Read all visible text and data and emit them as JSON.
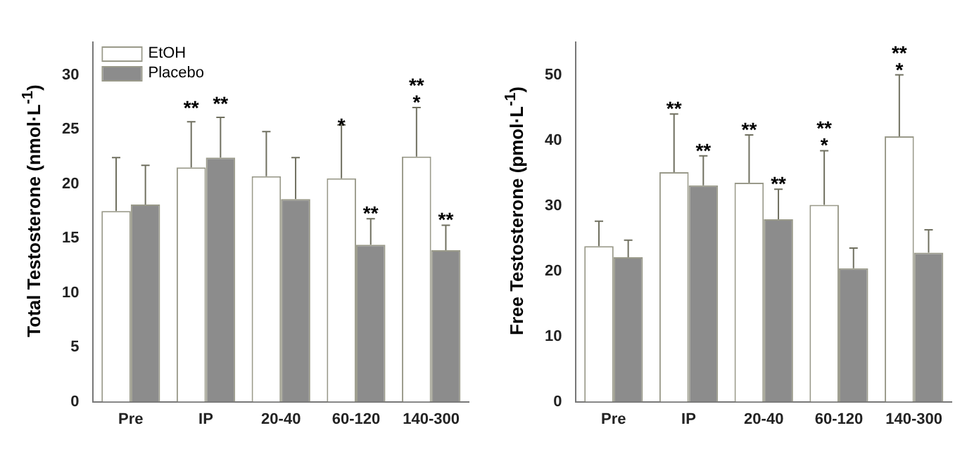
{
  "chart_data": [
    {
      "type": "bar",
      "ylabel": "Total Testosterone (nmol·L$^{-1}$)",
      "categories": [
        "Pre",
        "IP",
        "20-40",
        "60-120",
        "140-300"
      ],
      "series": [
        {
          "name": "EtOH",
          "color": "#ffffff",
          "values": [
            17.5,
            21.5,
            20.7,
            20.5,
            22.5
          ],
          "errors": [
            [
              17.5,
              22.4
            ],
            [
              21.5,
              25.7
            ],
            [
              20.7,
              24.8
            ],
            [
              20.5,
              25.4
            ],
            [
              22.5,
              27.0
            ]
          ]
        },
        {
          "name": "Placebo",
          "color": "#8c8c8c",
          "values": [
            18.1,
            22.4,
            18.6,
            14.4,
            13.9
          ],
          "errors": [
            [
              18.1,
              21.7
            ],
            [
              22.4,
              26.1
            ],
            [
              18.6,
              22.4
            ],
            [
              14.4,
              16.8
            ],
            [
              13.9,
              16.2
            ]
          ]
        }
      ],
      "ylim": [
        0,
        33
      ],
      "yticks": [
        0,
        5,
        10,
        15,
        20,
        25,
        30
      ],
      "grid": false,
      "legend": "top left",
      "annotations": [
        "**",
        "**",
        "*",
        "**",
        "**\n*",
        "**"
      ]
    },
    {
      "type": "bar",
      "ylabel": "Free Testosterone (pmol·L$^{-1}$)",
      "categories": [
        "Pre",
        "IP",
        "20-40",
        "60-120",
        "140-300"
      ],
      "series": [
        {
          "color": "#ffffff",
          "values": [
            23.8,
            35.1,
            33.5,
            30.1,
            40.6
          ],
          "errors": [
            [
              23.8,
              27.6
            ],
            [
              35.1,
              44.0
            ],
            [
              33.5,
              40.8
            ],
            [
              30.1,
              38.4
            ],
            [
              40.6,
              50.0
            ]
          ]
        },
        {
          "color": "#8c8c8c",
          "values": [
            22.1,
            33.1,
            27.9,
            20.4,
            22.8
          ],
          "errors": [
            [
              22.1,
              24.7
            ],
            [
              33.1,
              37.6
            ],
            [
              27.9,
              32.5
            ],
            [
              20.4,
              23.5
            ],
            [
              22.8,
              26.3
            ]
          ]
        }
      ],
      "ylim": [
        0,
        55
      ],
      "yticks": [
        0,
        10,
        20,
        30,
        40,
        50
      ],
      "grid": false,
      "annotations": [
        "**",
        "**",
        "**",
        "**",
        "**\n*",
        "**\n*"
      ]
    }
  ]
}
